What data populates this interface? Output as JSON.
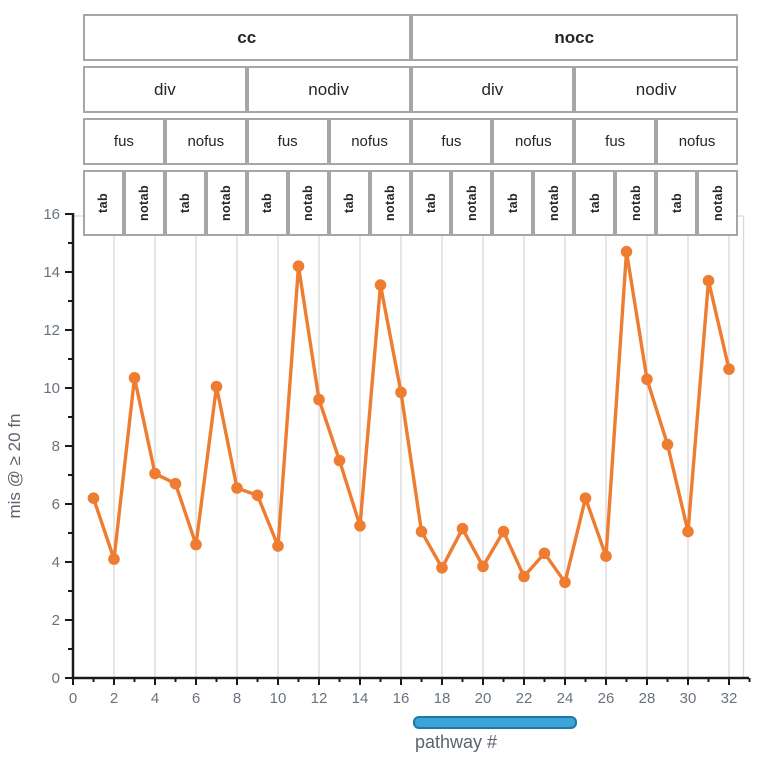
{
  "header": {
    "rows": [
      {
        "name": "cc-level",
        "rotated": false,
        "cells": [
          {
            "label": "cc",
            "span": 8
          },
          {
            "label": "nocc",
            "span": 8
          }
        ]
      },
      {
        "name": "div-level",
        "rotated": false,
        "cells": [
          {
            "label": "div",
            "span": 4
          },
          {
            "label": "nodiv",
            "span": 4
          },
          {
            "label": "div",
            "span": 4
          },
          {
            "label": "nodiv",
            "span": 4
          }
        ]
      },
      {
        "name": "fus-level",
        "rotated": false,
        "cells": [
          {
            "label": "fus",
            "span": 2
          },
          {
            "label": "nofus",
            "span": 2
          },
          {
            "label": "fus",
            "span": 2
          },
          {
            "label": "nofus",
            "span": 2
          },
          {
            "label": "fus",
            "span": 2
          },
          {
            "label": "nofus",
            "span": 2
          },
          {
            "label": "fus",
            "span": 2
          },
          {
            "label": "nofus",
            "span": 2
          }
        ]
      },
      {
        "name": "tab-level",
        "rotated": true,
        "cells": [
          {
            "label": "tab",
            "span": 1
          },
          {
            "label": "notab",
            "span": 1
          },
          {
            "label": "tab",
            "span": 1
          },
          {
            "label": "notab",
            "span": 1
          },
          {
            "label": "tab",
            "span": 1
          },
          {
            "label": "notab",
            "span": 1
          },
          {
            "label": "tab",
            "span": 1
          },
          {
            "label": "notab",
            "span": 1
          },
          {
            "label": "tab",
            "span": 1
          },
          {
            "label": "notab",
            "span": 1
          },
          {
            "label": "tab",
            "span": 1
          },
          {
            "label": "notab",
            "span": 1
          },
          {
            "label": "tab",
            "span": 1
          },
          {
            "label": "notab",
            "span": 1
          },
          {
            "label": "tab",
            "span": 1
          },
          {
            "label": "notab",
            "span": 1
          }
        ]
      }
    ]
  },
  "chart_data": {
    "type": "line",
    "title": "",
    "xlabel": "pathway #",
    "ylabel": "mis @ ≥ 20 fn",
    "x": [
      1,
      2,
      3,
      4,
      5,
      6,
      7,
      8,
      9,
      10,
      11,
      12,
      13,
      14,
      15,
      16,
      17,
      18,
      19,
      20,
      21,
      22,
      23,
      24,
      25,
      26,
      27,
      28,
      29,
      30,
      31,
      32
    ],
    "values": [
      6.2,
      4.1,
      10.35,
      7.05,
      6.7,
      4.6,
      10.05,
      6.55,
      6.3,
      4.55,
      14.2,
      9.6,
      7.5,
      5.25,
      13.55,
      9.85,
      5.05,
      3.8,
      5.15,
      3.85,
      5.05,
      3.5,
      4.3,
      3.3,
      6.2,
      4.2,
      14.7,
      10.3,
      8.05,
      5.05,
      13.7,
      10.65
    ],
    "xlim": [
      0,
      33
    ],
    "ylim": [
      0,
      16
    ],
    "x_tick_labels": [
      0,
      2,
      4,
      6,
      8,
      10,
      12,
      14,
      16,
      18,
      20,
      22,
      24,
      26,
      28,
      30,
      32
    ],
    "y_tick_labels": [
      0,
      2,
      4,
      6,
      8,
      10,
      12,
      14,
      16
    ],
    "minor_tick_step": 1,
    "grid": "vertical-major-only",
    "legend": "none",
    "series_color": "#ee7d31",
    "marker": "circle"
  },
  "scrollbar": {
    "x_start": 16.6,
    "x_end": 24.6,
    "fill": "#3aa5d8",
    "border": "#2077a4"
  },
  "colors": {
    "grid": "#d9d9d9",
    "plot_border": "#d9d9d9",
    "axis": "#1a1a1a",
    "tick_label": "#69737d",
    "axis_title": "#5c646d",
    "header_border": "#a6a6a6",
    "header_text": "#262626",
    "background": "#ffffff"
  }
}
